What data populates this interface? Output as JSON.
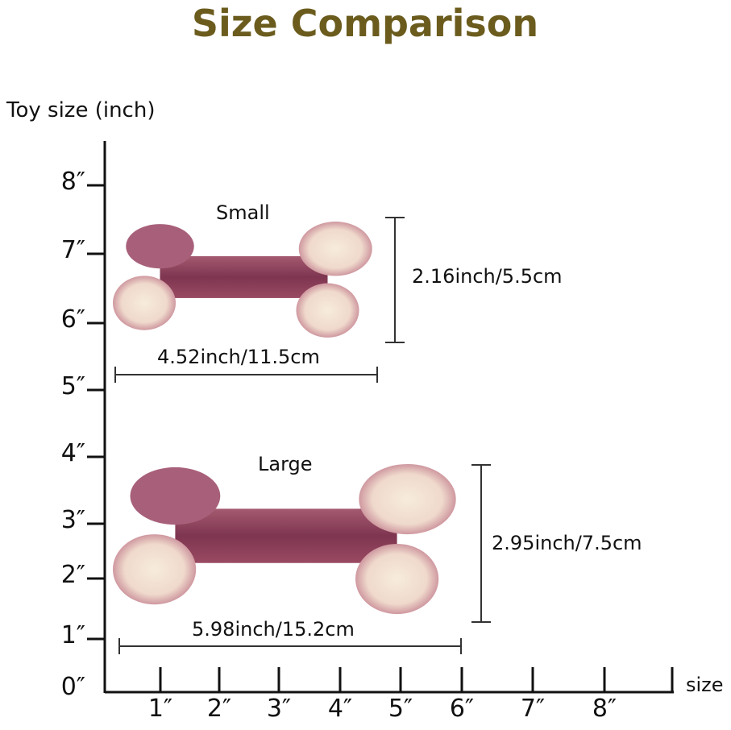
{
  "title": "Size Comparison",
  "colors": {
    "title": "#6b5c1e",
    "bone_body": "#8b3e57",
    "bone_knob": "#f3e6d6"
  },
  "y_axis": {
    "label": "Toy size (inch)",
    "ticks": [
      "0″",
      "1″",
      "2″",
      "3″",
      "4″",
      "5″",
      "6″",
      "7″",
      "8″"
    ]
  },
  "x_axis": {
    "label": "size",
    "ticks": [
      "1″",
      "2″",
      "3″",
      "4″",
      "5″",
      "6″",
      "7″",
      "8″"
    ]
  },
  "products": [
    {
      "name": "Small",
      "width_label": "4.52inch/11.5cm",
      "height_label": "2.16inch/5.5cm"
    },
    {
      "name": "Large",
      "width_label": "5.98inch/15.2cm",
      "height_label": "2.95inch/7.5cm"
    }
  ]
}
